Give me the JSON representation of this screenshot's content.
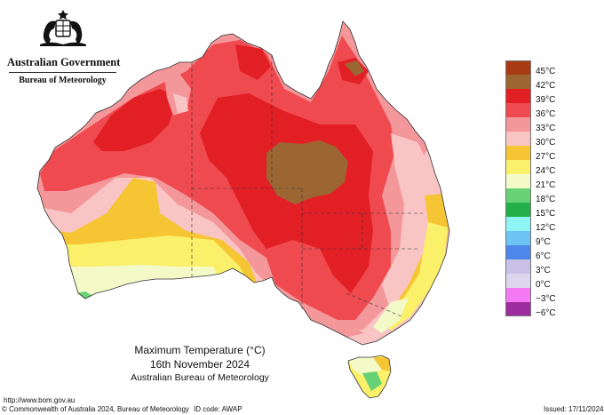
{
  "header": {
    "government": "Australian Government",
    "bureau": "Bureau of Meteorology",
    "crest": "commonwealth-coat-of-arms-icon"
  },
  "map": {
    "title": "Maximum Temperature (°C)",
    "date": "16th November 2024",
    "agency": "Australian Bureau of Meteorology"
  },
  "legend": [
    {
      "label": "45°C",
      "color": "#a83a14"
    },
    {
      "label": "42°C",
      "color": "#9c6632"
    },
    {
      "label": "39°C",
      "color": "#e31f26"
    },
    {
      "label": "36°C",
      "color": "#ef4a4f"
    },
    {
      "label": "33°C",
      "color": "#f4979b"
    },
    {
      "label": "30°C",
      "color": "#f9c4c4"
    },
    {
      "label": "27°C",
      "color": "#f5c534"
    },
    {
      "label": "24°C",
      "color": "#faf06a"
    },
    {
      "label": "21°C",
      "color": "#f3f9c7"
    },
    {
      "label": "18°C",
      "color": "#66d275"
    },
    {
      "label": "15°C",
      "color": "#23b04b"
    },
    {
      "label": "12°C",
      "color": "#8ef4f4"
    },
    {
      "label": "9°C",
      "color": "#6cc3f4"
    },
    {
      "label": "6°C",
      "color": "#4f86e9"
    },
    {
      "label": "3°C",
      "color": "#c9c2e6"
    },
    {
      "label": "0°C",
      "color": "#ddd6ef"
    },
    {
      "label": "−3°C",
      "color": "#f579f4"
    },
    {
      "label": "−6°C",
      "color": "#9f2c9f"
    }
  ],
  "footer": {
    "url": "http://www.bom.gov.au",
    "copyright": "© Commonwealth of Australia 2024, Bureau of Meteorology",
    "id_code": "ID code: AWAP",
    "issued": "Issued: 17/11/2024"
  }
}
